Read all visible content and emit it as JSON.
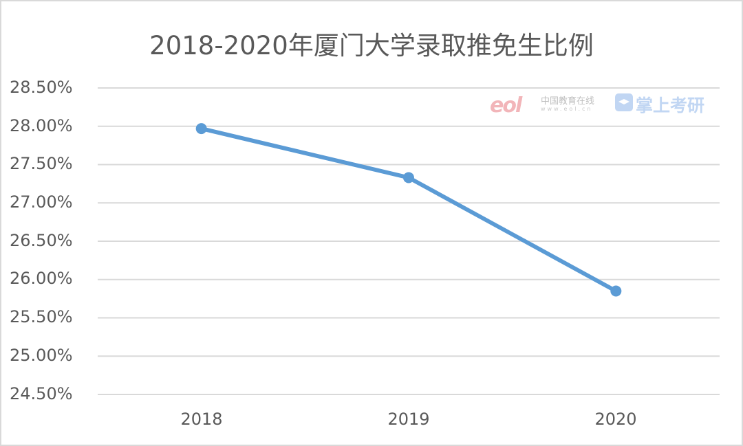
{
  "chart_data": {
    "type": "line",
    "title": "2018-2020年厦门大学录取推免生比例",
    "xlabel": "",
    "ylabel": "",
    "categories": [
      "2018",
      "2019",
      "2020"
    ],
    "series": [
      {
        "name": "录取推免生比例",
        "values": [
          27.97,
          27.33,
          25.85
        ],
        "color": "#5b9bd5"
      }
    ],
    "ylim": [
      24.5,
      28.5
    ],
    "yticks": [
      "28.50%",
      "28.00%",
      "27.50%",
      "27.00%",
      "26.50%",
      "26.00%",
      "25.50%",
      "25.00%",
      "24.50%"
    ],
    "grid": true,
    "legend": "none"
  },
  "watermark": {
    "logo_text": "eol",
    "site_name": "中国教育在线",
    "site_url": "www.eol.cn",
    "brand": "掌上考研"
  }
}
